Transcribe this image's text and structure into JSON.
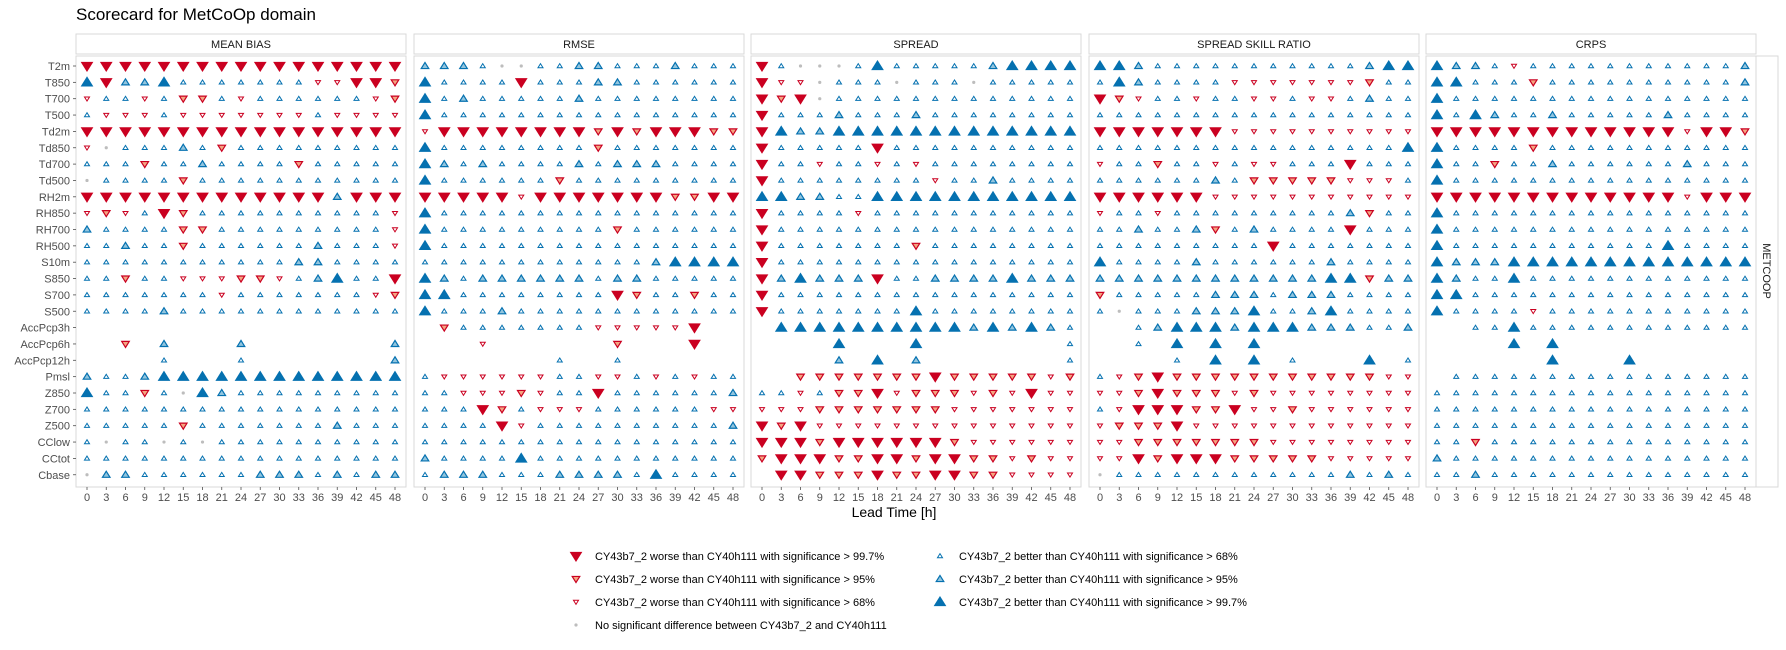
{
  "chart_data": {
    "type": "scatter",
    "title": "Scorecard for MetCoOp domain",
    "xlabel": "Lead Time [h]",
    "side_strip": "METCOOP",
    "lead_times": [
      0,
      3,
      6,
      9,
      12,
      15,
      18,
      21,
      24,
      27,
      30,
      33,
      36,
      39,
      42,
      45,
      48
    ],
    "parameters": [
      "T2m",
      "T850",
      "T700",
      "T500",
      "Td2m",
      "Td850",
      "Td700",
      "Td500",
      "RH2m",
      "RH850",
      "RH700",
      "RH500",
      "S10m",
      "S850",
      "S700",
      "S500",
      "AccPcp3h",
      "AccPcp6h",
      "AccPcp12h",
      "Pmsl",
      "Z850",
      "Z700",
      "Z500",
      "CClow",
      "CCtot",
      "Cbase"
    ],
    "panels": [
      "MEAN BIAS",
      "RMSE",
      "SPREAD",
      "SPREAD SKILL RATIO",
      "CRPS"
    ],
    "colors": {
      "worse": "#ca0020",
      "worse_fill_mid": "#f4a582",
      "better": "#0571b0",
      "better_fill_mid": "#92c5de",
      "none": "#bdbdbd"
    },
    "legend": {
      "codes": [
        -3,
        -2,
        -1,
        0,
        1,
        2,
        3
      ],
      "labels": {
        "-3": "CY43b7_2 worse than CY40h111 with significance > 99.7%",
        "-2": "CY43b7_2 worse than CY40h111 with significance > 95%",
        "-1": "CY43b7_2 worse than CY40h111 with significance > 68%",
        "0": "No significant difference between CY43b7_2 and CY40h111",
        "1": "CY43b7_2 better than CY40h111 with significance > 68%",
        "2": "CY43b7_2 better than CY40h111 with significance > 95%",
        "3": "CY43b7_2 better than CY40h111 with significance > 99.7%"
      }
    },
    "values_note": "codes: -3..3 significance level of worse(-)/better(+), 0 none, null missing",
    "scores": {
      "MEAN BIAS": [
        "-3 -3 -3 -3 -3 -3 -3 -3 -3 -3 -3 -3 -3 -3 -3 -3 -3",
        "3 -3 2 2 3 1 1 1 1 1 1 1 -1 -1 -3 -3 -2",
        "-1 1 1 -1 1 -2 -2 1 -1 1 1 1 1 1 1 -1 -2",
        "1 -1 -1 -1 1 -1 -1 -1 -1 -1 -1 -1 1 -1 -1 -1 -1",
        "-3 -3 -3 -3 -3 -3 -3 -3 -3 -3 -3 -3 -3 -3 -3 -3 -3",
        "-1 0 1 1 1 2 1 -2 1 1 1 1 1 1 1 1 1",
        "1 1 1 -2 1 1 2 1 1 1 1 -2 1 1 1 1 1",
        "0 1 1 1 1 -2 1 1 1 1 1 1 1 1 1 1 1",
        "-3 -3 -3 -3 -3 -3 -3 -3 -3 -3 -3 -3 -3 2 -3 -3 -3",
        "-1 -2 -1 1 -3 -2 1 1 1 1 1 1 1 1 1 1 -1",
        "2 1 1 1 1 -2 -2 1 1 1 1 1 1 1 1 1 -1",
        "1 1 2 1 1 -2 1 1 1 1 1 1 2 1 1 1 -1",
        "1 1 1 1 1 1 1 1 1 1 1 2 2 1 1 1 1",
        "1 1 -2 1 1 -1 -1 -1 -2 -2 -1 1 2 3 1 1 -3",
        "1 1 1 1 1 1 1 -1 1 1 1 1 1 1 1 -1 -2",
        "1 1 1 1 2 1 1 1 1 1 1 1 1 1 1 1 1",
        null,
        "null null -2 null 2 null null null 2 null null null null null null null 2",
        "null null null null 1 null null null 1 null null null null null null null 2",
        "2 1 1 2 3 3 3 3 3 3 3 3 3 3 3 3 3",
        "3 1 1 -2 1 0 3 2 1 1 1 1 1 1 1 1 1",
        "1 1 1 1 1 1 1 1 1 1 1 1 1 1 1 1 1",
        "1 1 1 1 1 -2 1 1 1 1 1 1 1 2 1 1 1",
        "1 0 1 1 0 1 0 1 1 1 1 1 1 1 1 1 1",
        "1 1 1 1 1 1 1 1 1 1 1 1 1 1 1 1 1",
        "0 2 2 1 1 1 1 1 1 2 2 2 1 2 1 2 2"
      ],
      "RMSE": [
        "2 2 2 1 0 0 1 1 2 2 1 1 1 2 1 1 1",
        "3 1 1 1 1 -3 1 1 1 2 2 1 1 1 1 1 1",
        "3 1 2 1 1 1 1 1 2 1 1 1 1 1 1 1 1",
        "3 1 1 1 1 1 1 1 1 1 1 1 1 1 1 1 1",
        "-1 -3 -3 -3 -3 -3 -3 -3 -3 -2 -3 -2 -3 -3 -3 -2 -2",
        "3 1 1 1 1 1 1 1 1 -2 1 1 1 1 1 1 1",
        "3 2 1 2 1 1 1 1 2 1 2 2 2 1 1 1 1",
        "3 1 1 1 1 1 1 -2 1 1 1 1 1 1 1 1 1",
        "-3 -3 -3 -3 -3 -1 -3 -3 -3 -3 -3 -3 -3 -2 -2 -3 -3",
        "3 1 1 1 1 1 1 1 1 1 1 1 1 1 1 1 1",
        "3 1 1 1 1 1 1 1 1 1 -2 1 1 1 1 1 1",
        "3 1 1 1 1 1 1 1 1 1 1 1 1 1 1 1 1",
        "1 1 1 1 1 1 1 1 1 1 1 1 2 3 3 3 3",
        "3 2 1 2 2 2 2 2 2 1 2 2 1 1 1 1 1",
        "3 3 1 1 1 1 1 1 1 1 -3 -2 1 1 -2 1 1",
        "3 1 1 1 2 1 1 1 1 1 1 1 1 1 1 1 1",
        "null -2 1 1 1 1 1 1 1 -1 -1 -1 -1 -1 -3 null null",
        "null null null -1 null null null null null null -2 null null null -3 null null",
        "null null null null null null null 1 null null 1 null null null null null null",
        "1 -1 -1 -1 -1 -1 -1 1 1 -1 -1 1 -1 1 -1 1 1",
        "1 1 -1 -1 -1 -2 -1 1 1 -3 1 1 1 1 1 1 2",
        "1 1 1 -3 -2 1 -1 -1 -1 1 1 1 1 1 1 -1 -1",
        "1 1 1 1 -3 -1 1 1 1 1 1 1 1 1 1 1 2",
        "1 1 1 1 1 1 1 1 1 1 1 1 1 1 1 1 1",
        "2 1 1 1 1 3 1 1 1 1 1 1 1 1 1 1 1",
        "1 2 2 2 1 1 1 2 2 2 2 1 3 1 1 1 1"
      ],
      "SPREAD": [
        "-3 1 0 0 0 1 3 1 1 1 1 1 2 3 3 3 3",
        "-3 -1 -1 0 1 1 1 0 1 1 1 0 1 1 1 1 1",
        "-3 -2 -3 0 1 1 1 1 1 1 1 1 1 1 1 1 1",
        "-3 1 1 1 2 1 1 1 2 1 1 1 1 1 1 1 1",
        "-3 3 2 2 3 3 3 3 3 3 3 3 3 3 3 3 3",
        "-3 1 1 1 1 1 -3 1 1 1 1 1 1 1 1 1 1",
        "-3 1 1 -1 1 1 -1 1 -1 1 1 1 1 1 1 1 1",
        "-3 1 1 1 1 1 1 1 1 -1 1 1 2 1 1 1 1",
        "3 3 2 2 1 1 3 3 3 3 3 3 3 3 3 3 3",
        "-3 1 1 1 1 -1 1 1 1 1 1 1 1 1 1 1 1",
        "-3 1 1 1 1 1 1 1 1 1 1 1 1 1 1 1 1",
        "-3 1 1 1 1 1 1 1 -2 1 1 1 1 1 1 1 1",
        "-3 1 1 1 1 1 1 1 1 1 1 1 1 1 1 1 1",
        "-3 2 3 2 2 2 -3 1 1 2 2 2 2 3 2 2 2",
        "-3 1 1 1 1 1 1 1 1 1 1 1 1 1 1 1 1",
        "-3 1 1 1 1 1 1 1 3 1 1 1 1 1 1 1 1",
        "null 3 3 3 3 3 3 3 3 3 3 2 3 2 3 2 1",
        "null null null null 3 null null null 3 null null null null null null null 1",
        "null null null null 2 null 3 null 2 null null null null null null null 1",
        "null null -2 -2 -2 -2 -2 -2 -2 -3 -2 -2 -2 -2 -2 -1 -2",
        "1 1 -1 1 -2 -2 -3 -1 -2 -2 -2 -1 -2 -1 -3 -1 -1",
        "-1 -1 -1 -2 -2 -2 -2 -2 -2 -2 -1 -1 -1 -1 -1 -1 -1",
        "-3 -2 -3 -1 -1 -1 -1 -1 -1 -1 -1 -1 -1 -1 -1 -1 -1",
        "-3 -3 -3 -2 -3 -3 -3 -3 -3 -3 -2 -1 -1 -1 -1 -1 -1",
        "-2 -3 -3 -3 -2 -2 -3 -3 -2 -3 -3 -2 -2 -1 -2 -1 -1",
        "null -3 -3 -2 -2 -2 -3 -2 -2 -3 -3 -2 -2 -1 -1 -1 -1"
      ],
      "SPREAD SKILL RATIO": [
        "3 3 2 1 1 1 1 1 1 1 1 1 1 1 2 3 3",
        "1 3 2 1 1 1 1 -1 -1 -1 -1 -1 -1 -1 -2 1 1",
        "-3 -2 -1 1 1 -1 1 1 -1 -1 1 -1 -1 1 2 1 1",
        "1 1 1 1 1 1 1 1 1 1 1 1 1 1 1 1 1",
        "-3 -3 -3 -3 -3 -3 -3 -1 -1 -1 -1 -1 -1 -1 -1 -1 -1",
        "1 1 1 1 1 1 1 1 1 1 1 1 1 1 1 1 3",
        "-1 1 1 -2 1 1 -1 1 -1 -1 1 1 1 -3 1 1 1",
        "1 1 1 1 1 1 2 1 -2 -2 -2 -2 -2 -1 -1 -1 1",
        "-3 -3 -3 -3 -3 -3 -1 -1 -1 -1 -1 -1 -1 -1 -1 -1 -1",
        "-1 1 1 -1 1 1 1 1 1 1 1 1 1 2 -2 1 1",
        "1 1 2 1 1 2 -2 1 2 1 1 1 1 -3 1 1 1",
        "1 1 1 1 1 1 1 1 1 -3 1 1 1 1 1 1 1",
        "3 1 1 1 1 2 1 1 1 1 1 1 2 1 1 1 1",
        "2 2 2 2 2 2 2 2 2 2 2 2 3 3 -2 2 2",
        "-2 1 1 1 1 1 2 2 2 1 2 2 2 1 1 1 1",
        "1 0 1 1 1 2 2 2 3 1 1 2 3 1 1 1 1",
        "null null 1 2 3 3 3 2 3 3 3 2 2 2 1 1 2",
        "null null 1 null 3 null 3 null 3 null null null null null null null null",
        "null null null null 1 null 3 null 3 null 1 null null null 3 null 1",
        "1 -1 -2 -3 -2 -2 -2 -2 -2 -2 -2 -2 -2 -2 -2 -1 -1",
        "-1 -1 -2 -3 -2 -2 -2 -1 -2 -1 -1 -1 -1 -1 -1 -1 -1",
        "1 -1 -3 -3 -3 -2 -2 -3 -1 -1 -2 -1 -1 -1 -1 -1 -1",
        "-1 -2 -2 -2 -3 -1 -1 -1 -1 -1 -1 -1 -1 -1 -1 -1 -1",
        "-1 -1 -2 -2 -2 -2 -2 -2 -2 -1 -1 -1 -1 -1 -1 -1 -1",
        "-1 -1 -3 -2 -3 -3 -3 -2 -2 -2 -2 -2 -1 -1 -1 -1 -1",
        "0 1 1 1 1 1 1 1 1 1 1 1 1 2 1 2 1"
      ],
      "CRPS": [
        "3 2 2 1 -1 1 1 1 1 1 1 1 1 1 1 1 2",
        "3 3 1 1 1 -2 1 1 1 1 1 1 1 1 1 1 2",
        "3 1 1 1 1 1 1 1 1 1 1 1 1 1 1 1 1",
        "3 1 3 2 1 1 2 1 1 1 1 1 2 1 1 1 1",
        "-3 -3 -3 -3 -3 -3 -3 -3 -3 -3 -3 -3 -3 -1 -3 -3 -2",
        "3 1 1 1 1 -2 1 1 1 1 1 1 1 1 1 1 1",
        "3 1 1 -2 1 1 2 1 1 1 1 1 1 2 1 1 1",
        "3 1 1 1 1 1 1 1 1 1 1 1 1 1 1 1 1",
        "-3 -3 -3 -3 -3 -3 -3 -3 -3 -3 -3 -3 -3 -1 -3 -3 -3",
        "3 1 1 1 1 1 1 1 1 1 1 1 1 1 1 1 1",
        "3 1 1 1 1 1 1 1 1 1 1 1 1 1 1 1 1",
        "3 1 1 1 1 1 1 1 1 1 1 1 3 1 1 1 1",
        "3 2 2 2 3 3 3 3 3 3 3 3 3 3 3 3 3",
        "3 2 1 1 3 1 1 1 1 1 1 1 1 1 1 1 1",
        "3 3 1 1 1 1 1 1 1 1 1 1 1 1 1 1 1",
        "3 1 1 1 1 -1 1 1 1 1 1 1 1 1 1 1 1",
        "null null 1 1 3 1 1 1 1 1 1 1 1 1 1 1 1",
        "null null null null 3 null 3 null null null null null null null null null null",
        "null null null null null null 3 null null null 3 null null null null null null",
        "null 1 1 1 1 1 1 1 1 1 1 1 1 1 1 1 1",
        "1 1 1 1 1 1 1 1 1 1 1 1 1 1 1 1 1",
        "1 1 1 1 1 1 1 1 1 1 1 1 1 1 1 1 1",
        "1 1 1 1 1 1 1 1 1 1 1 1 1 1 1 1 1",
        "1 1 -2 1 1 1 1 1 1 1 1 1 1 1 1 1 1",
        "2 1 1 1 1 1 1 1 1 1 1 1 1 1 1 1 1",
        "1 1 2 1 1 1 1 1 1 1 1 1 1 1 1 1 1"
      ]
    }
  }
}
